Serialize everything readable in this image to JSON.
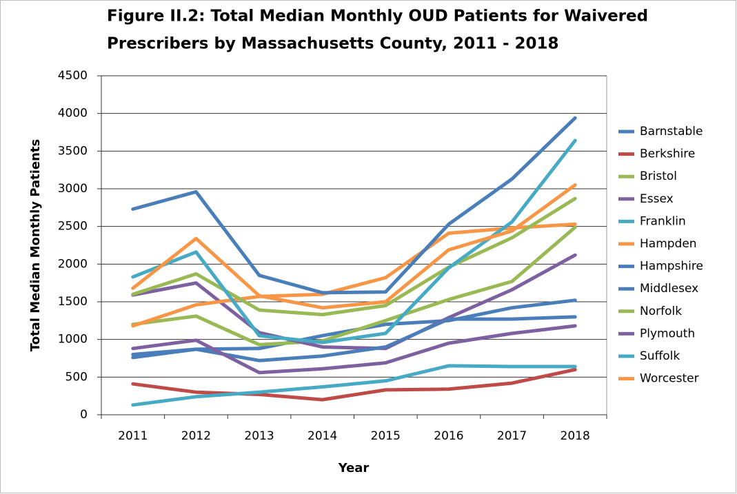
{
  "chart_data": {
    "type": "line",
    "title": [
      "Figure  II.2: Total Median Monthly OUD Patients for Waivered",
      "Prescribers by Massachusetts County, 2011 - 2018"
    ],
    "x_label": "Year",
    "y_label": "Total Median Monthly Patients",
    "categories": [
      "2011",
      "2012",
      "2013",
      "2014",
      "2015",
      "2016",
      "2017",
      "2018"
    ],
    "ylim": [
      0,
      4500
    ],
    "yticks": [
      0,
      500,
      1000,
      1500,
      2000,
      2500,
      3000,
      3500,
      4000,
      4500
    ],
    "grid": true,
    "legend": "right",
    "series": [
      {
        "name": "Barnstable",
        "color": "#4a7ebb",
        "values": [
          760,
          870,
          880,
          1050,
          1200,
          1250,
          1420,
          1520
        ]
      },
      {
        "name": "Berkshire",
        "color": "#be4b48",
        "values": [
          410,
          300,
          270,
          200,
          330,
          340,
          420,
          600
        ]
      },
      {
        "name": "Bristol",
        "color": "#98b954",
        "values": [
          1200,
          1310,
          930,
          980,
          1250,
          1530,
          1770,
          2490
        ]
      },
      {
        "name": "Essex",
        "color": "#7d60a0",
        "values": [
          1590,
          1750,
          1090,
          900,
          880,
          1290,
          1660,
          2120
        ]
      },
      {
        "name": "Franklin",
        "color": "#46aac5",
        "values": [
          130,
          240,
          300,
          370,
          450,
          650,
          640,
          640
        ]
      },
      {
        "name": "Hampden",
        "color": "#f79646",
        "values": [
          1180,
          1460,
          1570,
          1600,
          1820,
          2410,
          2480,
          2530
        ]
      },
      {
        "name": "Hampshire",
        "color": "#4a7ebb",
        "values": [
          800,
          870,
          720,
          780,
          900,
          1270,
          1270,
          1300
        ]
      },
      {
        "name": "Middlesex",
        "color": "#4a7ebb",
        "values": [
          2730,
          2960,
          1850,
          1620,
          1630,
          2530,
          3130,
          3940
        ]
      },
      {
        "name": "Norfolk",
        "color": "#98b954",
        "values": [
          1600,
          1870,
          1390,
          1330,
          1450,
          1960,
          2350,
          2870
        ]
      },
      {
        "name": "Plymouth",
        "color": "#7d60a0",
        "values": [
          880,
          990,
          560,
          610,
          690,
          950,
          1080,
          1180
        ]
      },
      {
        "name": "Suffolk",
        "color": "#46aac5",
        "values": [
          1830,
          2160,
          1050,
          960,
          1080,
          1950,
          2560,
          3640
        ]
      },
      {
        "name": "Worcester",
        "color": "#f79646",
        "values": [
          1680,
          2340,
          1580,
          1420,
          1500,
          2190,
          2440,
          3050
        ]
      }
    ]
  }
}
